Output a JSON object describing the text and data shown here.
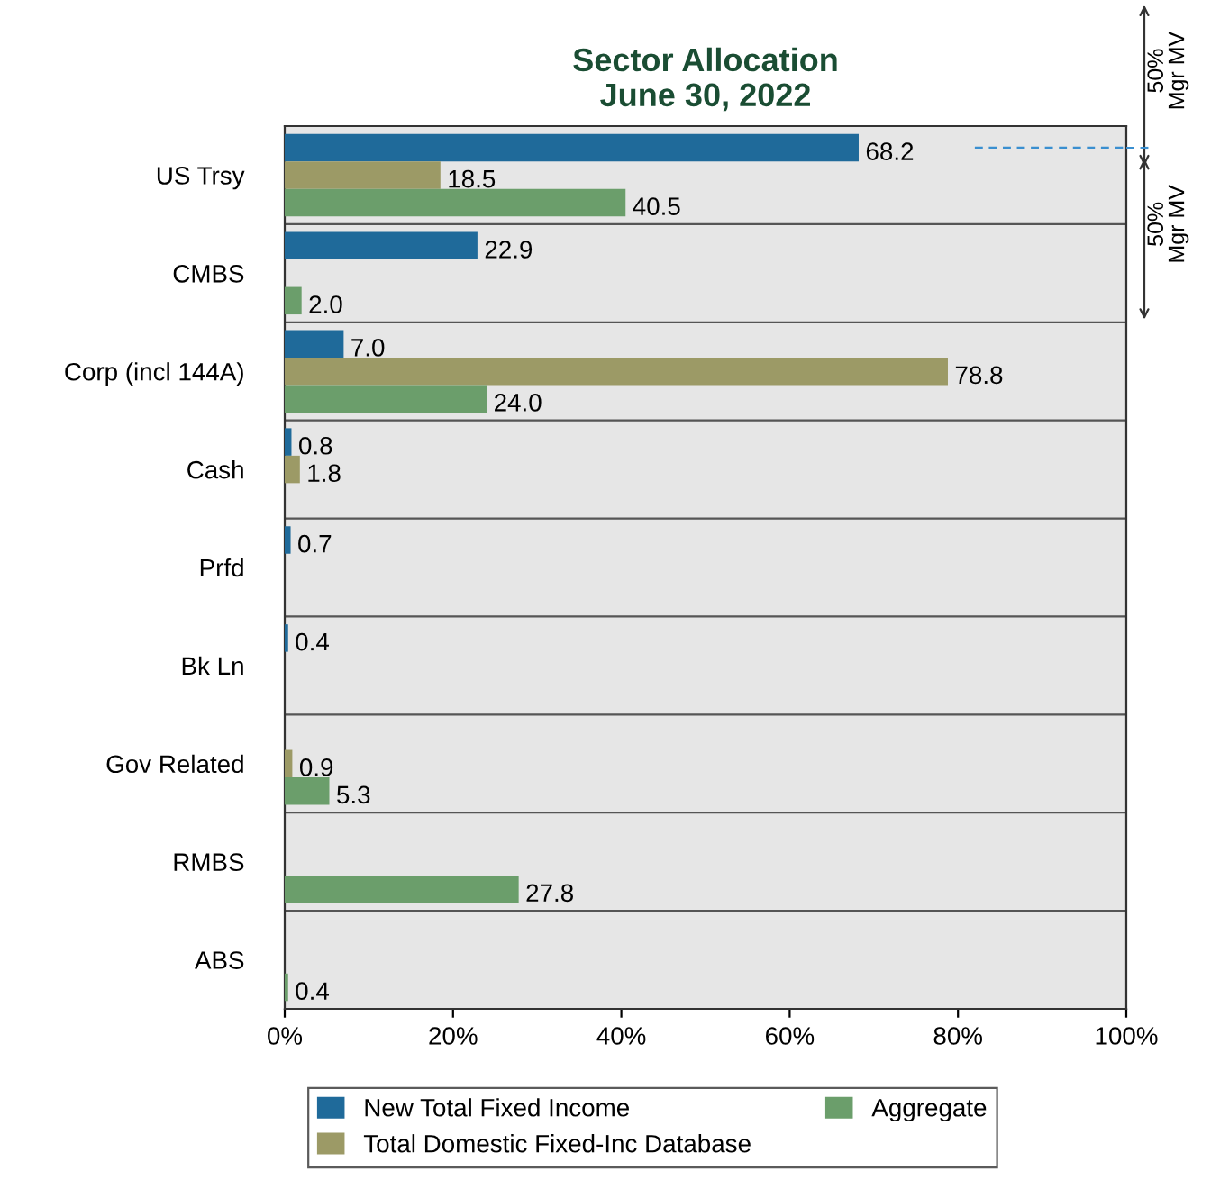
{
  "chart_data": {
    "type": "bar",
    "orientation": "horizontal",
    "title": "Sector Allocation\nJune 30, 2022",
    "categories": [
      "US Trsy",
      "CMBS",
      "Corp (incl 144A)",
      "Cash",
      "Prfd",
      "Bk Ln",
      "Gov Related",
      "RMBS",
      "ABS"
    ],
    "series": [
      {
        "name": "New Total Fixed Income",
        "color": "#1f6a9a",
        "values": [
          68.2,
          22.9,
          7.0,
          0.8,
          0.7,
          0.4,
          null,
          null,
          null
        ],
        "value_labels": [
          "68.2",
          "22.9",
          "7.0",
          "0.8",
          "0.7",
          "0.4",
          null,
          null,
          null
        ]
      },
      {
        "name": "Total Domestic Fixed-Inc Database",
        "color": "#9c9a66",
        "values": [
          18.5,
          null,
          78.8,
          1.8,
          null,
          null,
          0.9,
          null,
          null
        ],
        "value_labels": [
          "18.5",
          null,
          "78.8",
          "1.8",
          null,
          null,
          "0.9",
          null,
          null
        ]
      },
      {
        "name": "Aggregate",
        "color": "#6b9e6b",
        "values": [
          40.5,
          2.0,
          24.0,
          null,
          null,
          null,
          5.3,
          27.8,
          0.4
        ],
        "value_labels": [
          "40.5",
          "2.0",
          "24.0",
          null,
          null,
          null,
          "5.3",
          "27.8",
          "0.4"
        ]
      }
    ],
    "xlim": [
      0,
      100
    ],
    "xticks": [
      {
        "value": 0,
        "label": "0%"
      },
      {
        "value": 20,
        "label": "20%"
      },
      {
        "value": 40,
        "label": "40%"
      },
      {
        "value": 60,
        "label": "60%"
      },
      {
        "value": 80,
        "label": "80%"
      },
      {
        "value": 100,
        "label": "100%"
      }
    ],
    "grid": "y",
    "legend": "bottom",
    "annotations": [
      "50%\nMgr MV",
      "50%\nMgr MV"
    ]
  }
}
